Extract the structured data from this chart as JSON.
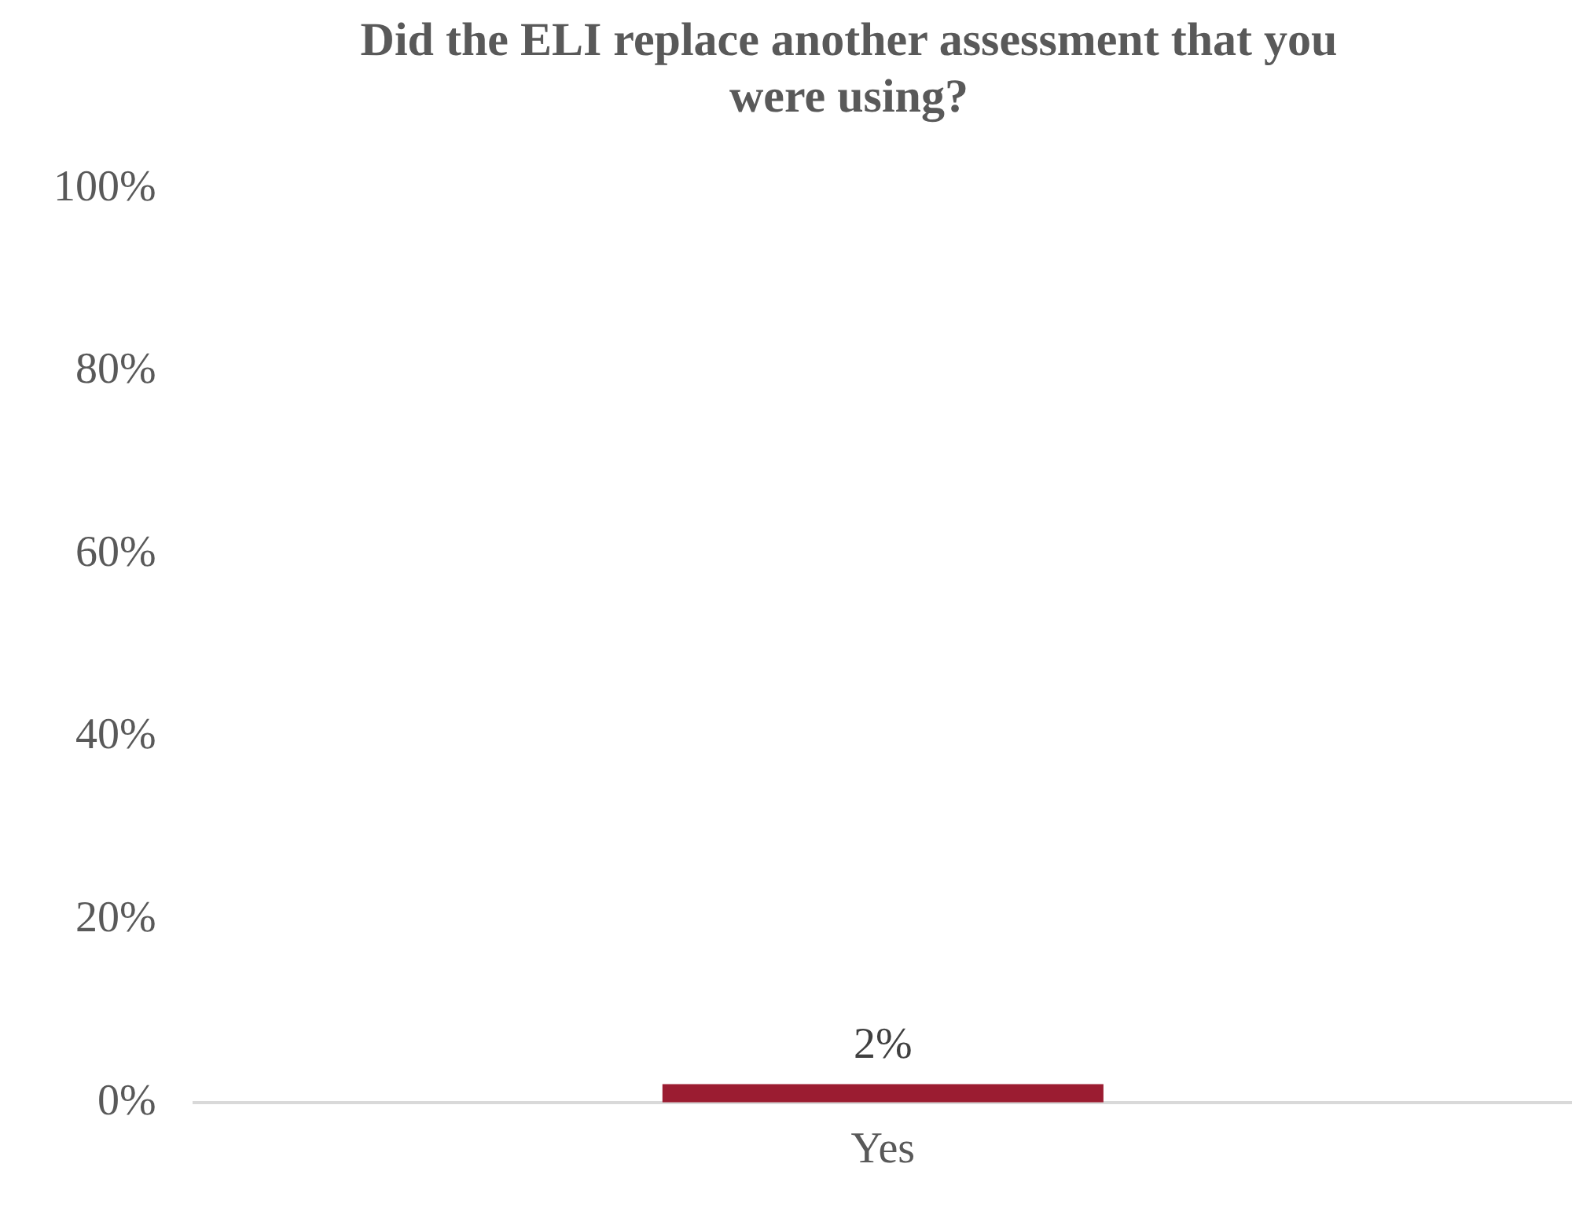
{
  "chart_data": {
    "type": "bar",
    "title": "Did the ELI replace another assessment that you were using?",
    "categories": [
      "Yes"
    ],
    "values": [
      2
    ],
    "color": "#9b1c31",
    "value_labels": [
      "2%"
    ],
    "ylim": [
      0,
      100
    ],
    "yticks": [
      {
        "value": 0,
        "label": "0%"
      },
      {
        "value": 20,
        "label": "20%"
      },
      {
        "value": 40,
        "label": "40%"
      },
      {
        "value": 60,
        "label": "60%"
      },
      {
        "value": 80,
        "label": "80%"
      },
      {
        "value": 100,
        "label": "100%"
      }
    ],
    "grid": false,
    "legend": false
  }
}
